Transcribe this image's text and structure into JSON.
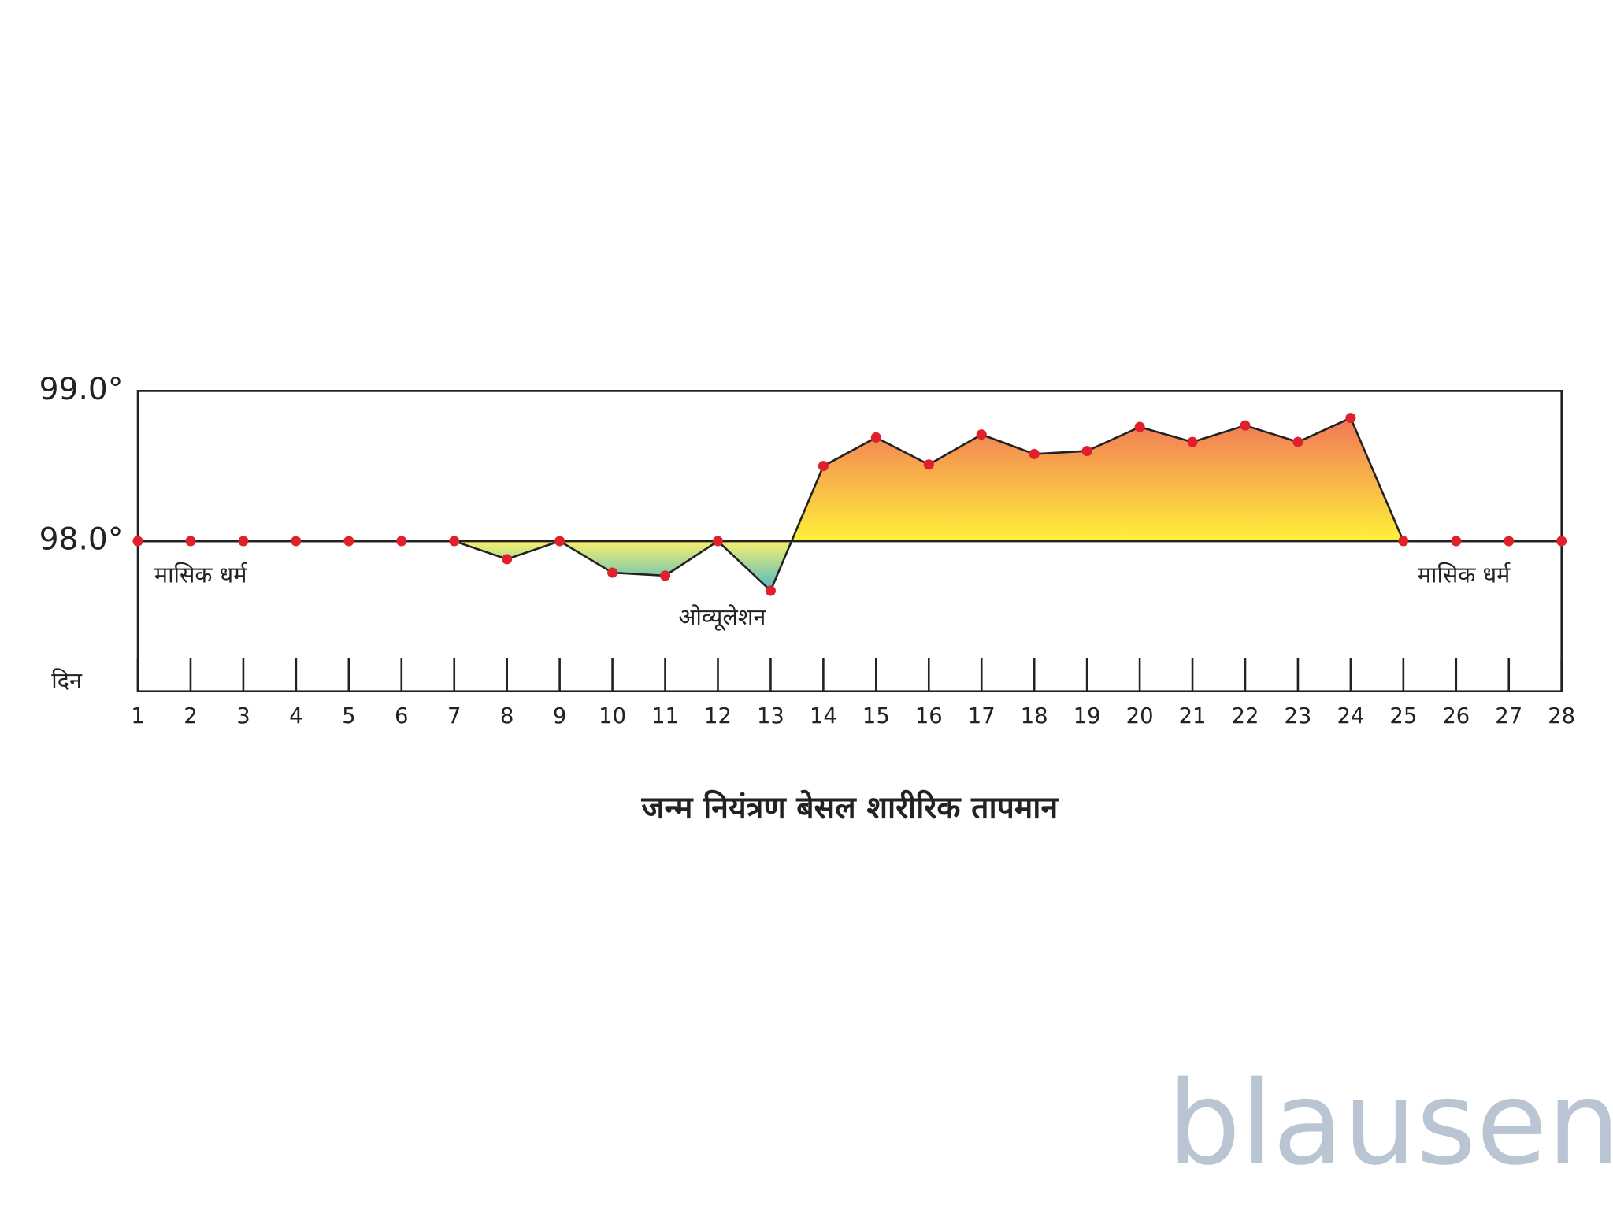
{
  "chart_data": {
    "type": "line",
    "title": "जन्म नियंत्रण बेसल शारीरिक तापमान",
    "x_label": "दिन",
    "x": [
      1,
      2,
      3,
      4,
      5,
      6,
      7,
      8,
      9,
      10,
      11,
      12,
      13,
      14,
      15,
      16,
      17,
      18,
      19,
      20,
      21,
      22,
      23,
      24,
      25,
      26,
      27,
      28
    ],
    "values": [
      98.0,
      98.0,
      98.0,
      98.0,
      98.0,
      98.0,
      98.0,
      97.88,
      98.0,
      97.79,
      97.77,
      98.0,
      97.67,
      98.5,
      98.69,
      98.51,
      98.71,
      98.58,
      98.6,
      98.76,
      98.66,
      98.77,
      98.66,
      98.82,
      98.0,
      98.0,
      98.0,
      98.0
    ],
    "color": "#222222",
    "marker_color": "#e0202a",
    "xlim": [
      1,
      28
    ],
    "xticks": [
      1,
      2,
      3,
      4,
      5,
      6,
      7,
      8,
      9,
      10,
      11,
      12,
      13,
      14,
      15,
      16,
      17,
      18,
      19,
      20,
      21,
      22,
      23,
      24,
      25,
      26,
      27,
      28
    ],
    "ylim": [
      97.0,
      99.0
    ],
    "yticks": [
      {
        "value": 98.0,
        "label": "98.0°"
      },
      {
        "value": 99.0,
        "label": "99.0°"
      }
    ],
    "grid": true,
    "annotations": [
      "मासिक धर्म",
      "ओव्यूलेशन",
      "मासिक धर्म"
    ]
  },
  "logo": "blausen"
}
